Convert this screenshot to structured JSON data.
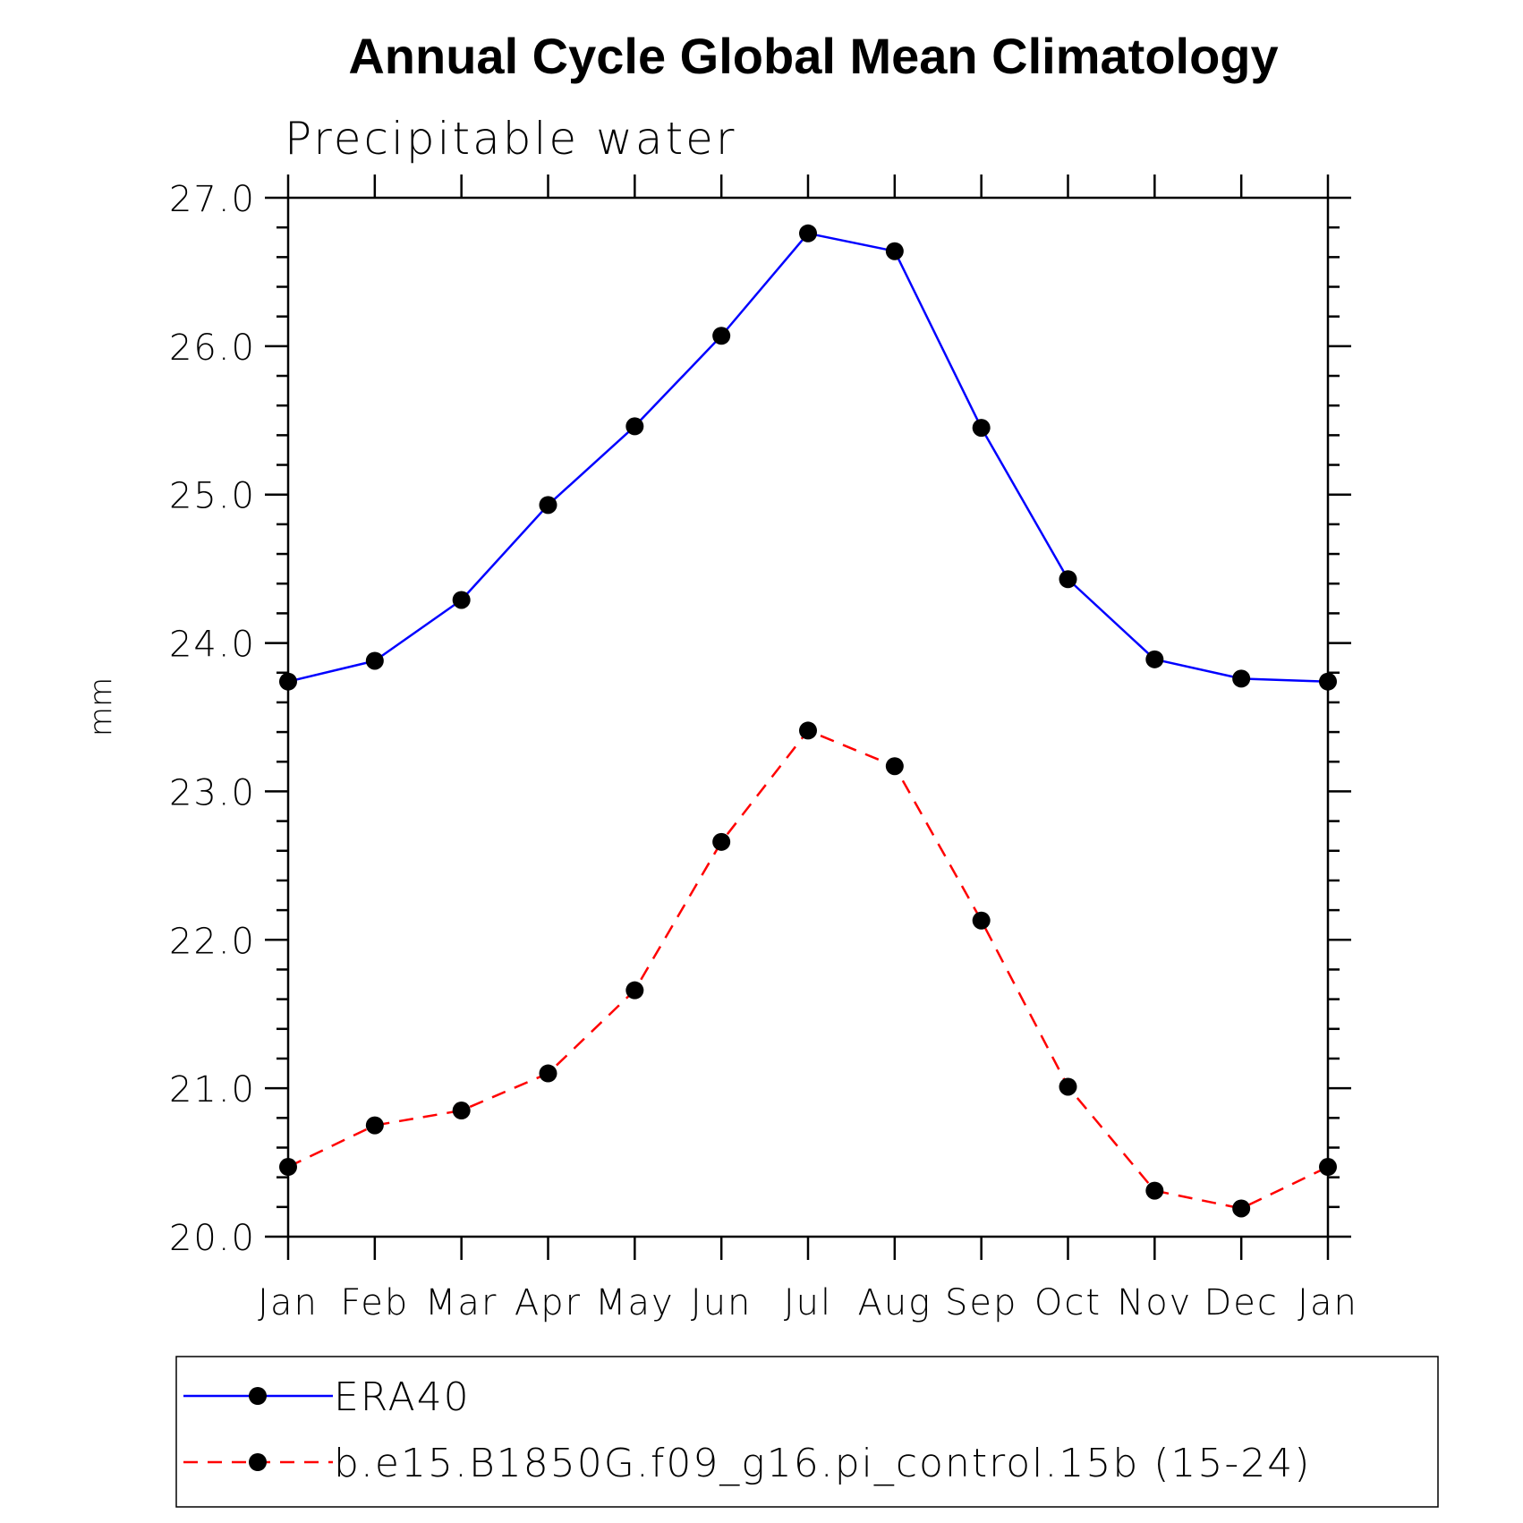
{
  "chart_data": {
    "type": "line",
    "title": "Annual Cycle Global Mean Climatology",
    "subtitle": "Precipitable water",
    "xlabel": "",
    "ylabel": "mm",
    "categories": [
      "Jan",
      "Feb",
      "Mar",
      "Apr",
      "May",
      "Jun",
      "Jul",
      "Aug",
      "Sep",
      "Oct",
      "Nov",
      "Dec",
      "Jan"
    ],
    "ylim": [
      20.0,
      27.0
    ],
    "y_ticks": [
      "20.0",
      "21.0",
      "22.0",
      "23.0",
      "24.0",
      "25.0",
      "26.0",
      "27.0"
    ],
    "y_minor_step": 0.2,
    "grid": false,
    "legend_position": "bottom",
    "series": [
      {
        "name": "ERA40",
        "color": "#0000ff",
        "line_style": "solid",
        "marker": "filled-circle",
        "values": [
          23.74,
          23.88,
          24.29,
          24.93,
          25.46,
          26.07,
          26.76,
          26.64,
          25.45,
          24.43,
          23.89,
          23.76,
          23.74
        ]
      },
      {
        "name": "b.e15.B1850G.f09_g16.pi_control.15b (15-24)",
        "color": "#ff0000",
        "line_style": "dashed",
        "marker": "filled-circle",
        "values": [
          20.47,
          20.75,
          20.85,
          21.1,
          21.66,
          22.66,
          23.41,
          23.17,
          22.13,
          21.01,
          20.31,
          20.19,
          20.47
        ]
      }
    ]
  }
}
